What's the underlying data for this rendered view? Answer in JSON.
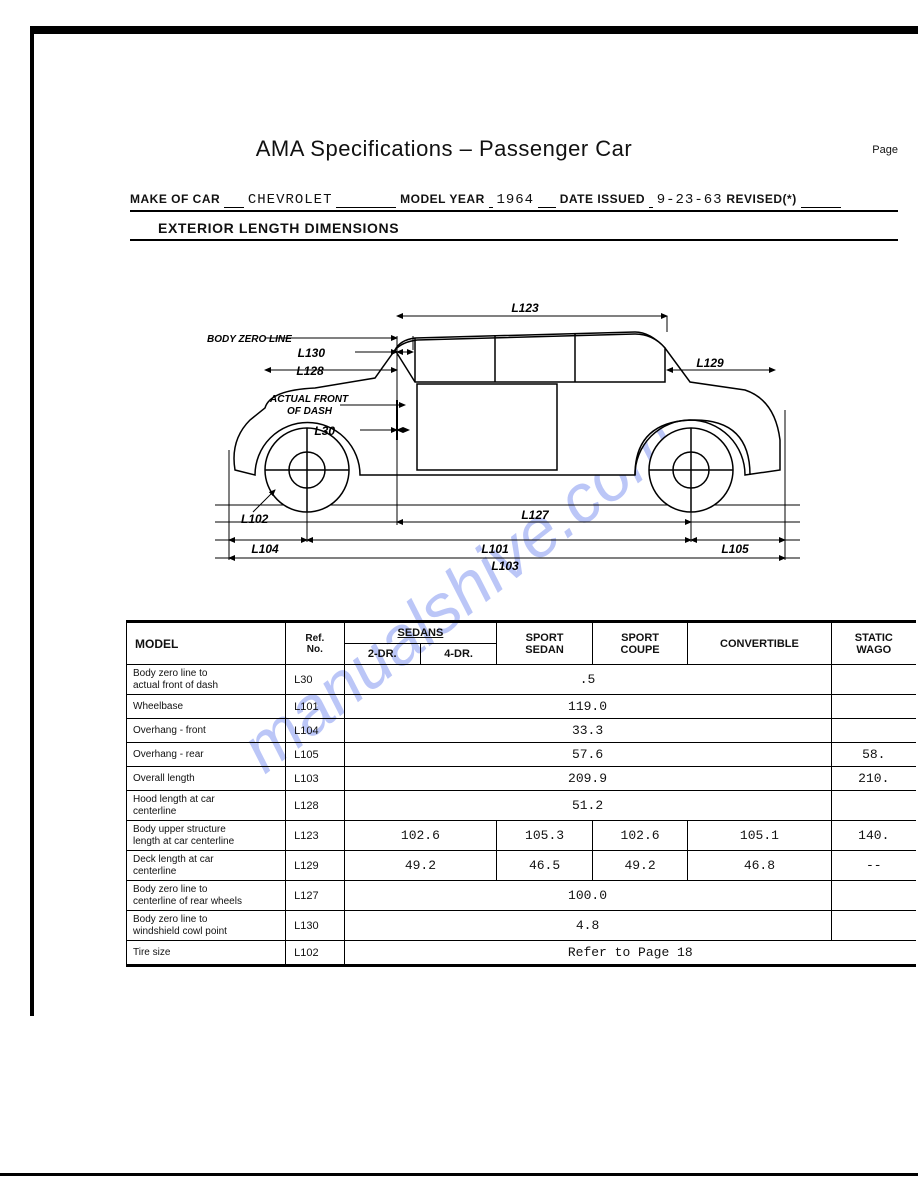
{
  "page": {
    "title": "AMA Specifications – Passenger Car",
    "page_label": "Page "
  },
  "header": {
    "make_label": "MAKE OF CAR",
    "make_value": "CHEVROLET",
    "year_label": "MODEL YEAR",
    "year_value": "1964",
    "date_label": "DATE ISSUED",
    "date_value": "9-23-63",
    "revised_label": "REVISED(*)"
  },
  "section_title": "EXTERIOR LENGTH DIMENSIONS",
  "watermark_text": "manualshive.com",
  "diagram": {
    "labels": {
      "bodyzero": "BODY ZERO LINE",
      "actualfront": "ACTUAL FRONT\nOF DASH",
      "L123": "L123",
      "L130": "L130",
      "L128": "L128",
      "L129": "L129",
      "L30": "L30",
      "L102": "L102",
      "L127": "L127",
      "L104": "L104",
      "L101": "L101",
      "L105": "L105",
      "L103": "L103"
    },
    "stroke": "#000000",
    "fill": "#ffffff"
  },
  "table": {
    "headers": {
      "model": "MODEL",
      "ref": "Ref.\nNo.",
      "sedans": "SEDANS",
      "sedan_2dr": "2-DR.",
      "sedan_4dr": "4-DR.",
      "sport_sedan": "SPORT\nSEDAN",
      "sport_coupe": "SPORT\nCOUPE",
      "convertible": "CONVERTIBLE",
      "station_wagon": "STATIC\nWAGO"
    },
    "rows": [
      {
        "label": "Body zero line to\nactual front of dash",
        "ref": "L30",
        "span": ".5",
        "sw": ""
      },
      {
        "label": "Wheelbase",
        "ref": "L101",
        "span": "119.0",
        "sw": ""
      },
      {
        "label": "Overhang - front",
        "ref": "L104",
        "span": "33.3",
        "sw": ""
      },
      {
        "label": "Overhang - rear",
        "ref": "L105",
        "span": "57.6",
        "sw": "58."
      },
      {
        "label": "Overall length",
        "ref": "L103",
        "span": "209.9",
        "sw": "210."
      },
      {
        "label": "Hood length at car\ncenterline",
        "ref": "L128",
        "span": "51.2",
        "sw": ""
      },
      {
        "label": "Body upper structure\nlength at car centerline",
        "ref": "L123",
        "sed": "102.6",
        "ss": "105.3",
        "sc": "102.6",
        "conv": "105.1",
        "sw": "140."
      },
      {
        "label": "Deck length at car\ncenterline",
        "ref": "L129",
        "sed": "49.2",
        "ss": "46.5",
        "sc": "49.2",
        "conv": "46.8",
        "sw": "--"
      },
      {
        "label": "Body zero line to\ncenterline of rear wheels",
        "ref": "L127",
        "span": "100.0",
        "sw": ""
      },
      {
        "label": "Body zero line to\nwindshield cowl point",
        "ref": "L130",
        "span": "4.8",
        "sw": ""
      },
      {
        "label": "Tire size",
        "ref": "L102",
        "full": "Refer to Page 18"
      }
    ]
  }
}
